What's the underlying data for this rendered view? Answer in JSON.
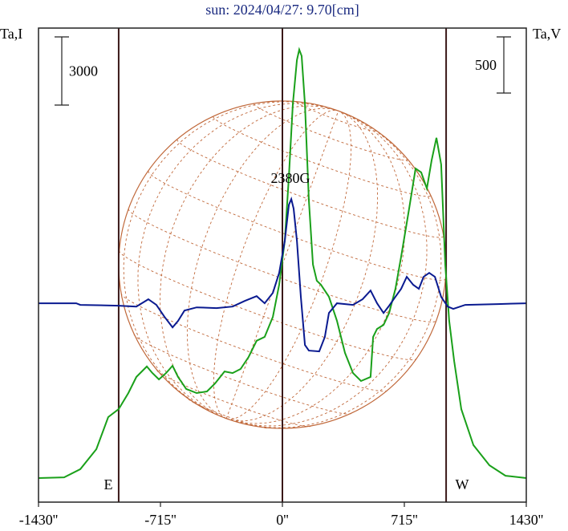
{
  "chart_data": {
    "type": "line",
    "title": "sun: 2024/04/27: 9.70[cm]",
    "y_label": "Ta,I",
    "y2_label": "Ta,V",
    "annotation": "2380G",
    "east_label": "E",
    "west_label": "W",
    "xlim": [
      -1430,
      1430
    ],
    "xticks": [
      {
        "value": -1430,
        "label": "-1430''"
      },
      {
        "value": -715,
        "label": "-715''"
      },
      {
        "value": 0,
        "label": "0''"
      },
      {
        "value": 715,
        "label": "715''"
      },
      {
        "value": 1430,
        "label": "1430''"
      }
    ],
    "ylim": [
      0,
      20860
    ],
    "y2lim": [
      -1770,
      2450
    ],
    "i_scale": 3000,
    "v_scale": 500,
    "vlines": [
      -960,
      0,
      960
    ],
    "series": [
      {
        "color": "#1aa01a",
        "x": [
          -1430,
          -1280,
          -1185,
          -1091,
          -1021,
          -960,
          -903,
          -856,
          -795,
          -762,
          -724,
          -682,
          -644,
          -612,
          -564,
          -503,
          -442,
          -395,
          -339,
          -292,
          -245,
          -198,
          -151,
          -104,
          -56,
          -19,
          14,
          38,
          61,
          85,
          99,
          113,
          132,
          155,
          179,
          202,
          226,
          273,
          320,
          367,
          414,
          461,
          517,
          532,
          555,
          593,
          626,
          663,
          696,
          743,
          781,
          814,
          847,
          875,
          903,
          931,
          955,
          978,
          1007,
          1049,
          1120,
          1214,
          1308,
          1430
        ],
        "values": [
          1060,
          1090,
          1450,
          2330,
          3740,
          4090,
          4800,
          5510,
          5970,
          5680,
          5400,
          5680,
          6000,
          5510,
          4980,
          4800,
          4870,
          5220,
          5750,
          5680,
          5860,
          6390,
          7100,
          7270,
          8150,
          9570,
          11510,
          14330,
          17510,
          19450,
          19910,
          19630,
          17510,
          13270,
          10450,
          9740,
          9570,
          9040,
          7980,
          6570,
          5680,
          5330,
          5510,
          7270,
          7620,
          7800,
          8330,
          9390,
          10800,
          12920,
          14680,
          14510,
          13800,
          15040,
          16030,
          14860,
          10450,
          7980,
          6210,
          4090,
          2510,
          1620,
          1160,
          1060
        ]
      },
      {
        "color": "#0a1a90",
        "axis": "y2",
        "x": [
          -1430,
          -1209,
          -1185,
          -960,
          -856,
          -786,
          -739,
          -691,
          -644,
          -612,
          -574,
          -503,
          -386,
          -292,
          -221,
          -151,
          -104,
          -56,
          -19,
          14,
          38,
          52,
          66,
          85,
          108,
          132,
          155,
          216,
          249,
          273,
          320,
          414,
          470,
          517,
          555,
          593,
          626,
          659,
          696,
          729,
          767,
          800,
          828,
          861,
          894,
          931,
          969,
          1002,
          1072,
          1261,
          1430
        ],
        "values": [
          0,
          0,
          -14,
          -21,
          -29,
          36,
          -14,
          -121,
          -214,
          -157,
          -64,
          -36,
          -43,
          -29,
          21,
          64,
          0,
          93,
          271,
          557,
          878,
          928,
          843,
          557,
          57,
          -371,
          -421,
          -428,
          -300,
          -86,
          0,
          -14,
          36,
          114,
          0,
          -86,
          -21,
          50,
          129,
          236,
          164,
          129,
          236,
          271,
          236,
          57,
          -29,
          -50,
          -14,
          -7,
          0
        ]
      }
    ]
  }
}
